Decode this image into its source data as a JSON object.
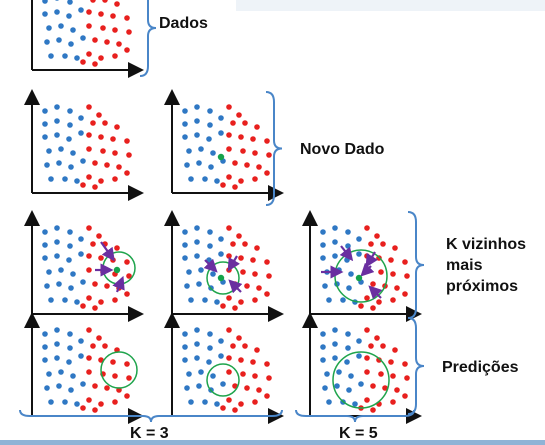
{
  "labels": {
    "dados": "Dados",
    "novo_dado": "Novo Dado",
    "k_vizinhos": "K vizinhos mais próximos",
    "predicoes": "Predições",
    "k3": "K = 3",
    "k5": "K = 5"
  },
  "colors": {
    "blue_class": "#2f78c4",
    "red_class": "#e8201e",
    "new_point": "#15a24a",
    "circle": "#1fa44c",
    "neighbor_arrow": "#6a2fa0",
    "brace": "#4a86c8",
    "axis": "#111111"
  },
  "icons": {
    "neighbor_marker": "arrow-icon",
    "neighborhood": "circle-icon"
  },
  "panels": [
    {
      "id": "dados",
      "new_point": false
    },
    {
      "id": "novo-dado-1",
      "new_point": false
    },
    {
      "id": "novo-dado-2",
      "new_point": true
    },
    {
      "id": "k3-vizinhos-1",
      "new_point": true,
      "neighbors": 3
    },
    {
      "id": "k3-vizinhos-2",
      "new_point": true,
      "neighbors": 3
    },
    {
      "id": "k5-vizinhos",
      "new_point": true,
      "neighbors": 5
    },
    {
      "id": "k3-predicao-1",
      "new_point": false,
      "prediction": "red"
    },
    {
      "id": "k3-predicao-2",
      "new_point": false,
      "prediction": "blue"
    },
    {
      "id": "k5-predicao",
      "new_point": false,
      "prediction": "blue"
    }
  ]
}
